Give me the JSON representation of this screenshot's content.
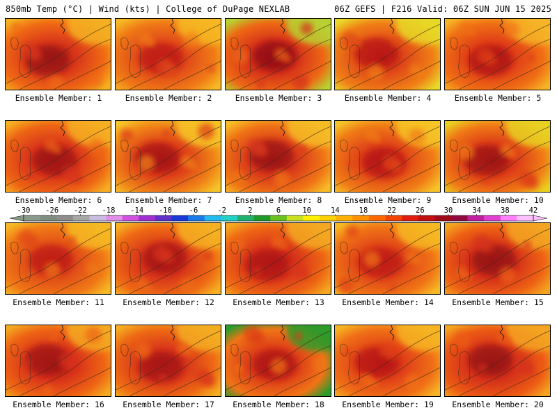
{
  "header": {
    "left_title": "850mb Temp (°C) | Wind (kts) | College of DuPage NEXLAB",
    "right_title": "06Z GEFS | F216 Valid: 06Z SUN JUN 15 2025"
  },
  "colorbar": {
    "tick_labels": [
      "-30",
      "-26",
      "-22",
      "-18",
      "-14",
      "-10",
      "-6",
      "-2",
      "2",
      "6",
      "10",
      "14",
      "18",
      "22",
      "26",
      "30",
      "34",
      "38",
      "42"
    ],
    "colors": [
      "#8a9a8a",
      "#7f8c80",
      "#8d8d8d",
      "#a7a7a7",
      "#c8bce0",
      "#e08ee8",
      "#d050e0",
      "#a030d0",
      "#6030c8",
      "#1a3ad8",
      "#1a7ae8",
      "#22b8f0",
      "#22d0c8",
      "#20b070",
      "#1e9a2a",
      "#6cc020",
      "#c8e020",
      "#fff000",
      "#ffd000",
      "#ffb000",
      "#ff9000",
      "#ff6a00",
      "#f04400",
      "#e01e10",
      "#c01010",
      "#a00a18",
      "#900a40",
      "#c020a0",
      "#e040d0",
      "#ff80ff",
      "#ffc0ff"
    ],
    "min": -30,
    "max": 42
  },
  "panels": [
    {
      "label": "Ensemble Member: 1",
      "base": "#f06a14",
      "hot": "#9a1212",
      "mid": "#d8361a",
      "cool": "#f4b020"
    },
    {
      "label": "Ensemble Member: 2",
      "base": "#f07a16",
      "hot": "#c01a14",
      "mid": "#e0481a",
      "cool": "#f6b824"
    },
    {
      "label": "Ensemble Member: 3",
      "base": "#ee6814",
      "hot": "#961014",
      "mid": "#d4301a",
      "cool": "#b8d030"
    },
    {
      "label": "Ensemble Member: 4",
      "base": "#f08016",
      "hot": "#b81614",
      "mid": "#e04818",
      "cool": "#e8d828"
    },
    {
      "label": "Ensemble Member: 5",
      "base": "#f07014",
      "hot": "#b01414",
      "mid": "#e03e18",
      "cool": "#f6b426"
    },
    {
      "label": "Ensemble Member: 6",
      "base": "#ee6614",
      "hot": "#a01212",
      "mid": "#d8341a",
      "cool": "#f6ae22"
    },
    {
      "label": "Ensemble Member: 7",
      "base": "#f08418",
      "hot": "#a81414",
      "mid": "#dc3c18",
      "cool": "#f6c428"
    },
    {
      "label": "Ensemble Member: 8",
      "base": "#f07416",
      "hot": "#9c1212",
      "mid": "#d8381a",
      "cool": "#f6bc26"
    },
    {
      "label": "Ensemble Member: 9",
      "base": "#f07c16",
      "hot": "#b81614",
      "mid": "#e04418",
      "cool": "#f6c428"
    },
    {
      "label": "Ensemble Member: 10",
      "base": "#f07a16",
      "hot": "#a01212",
      "mid": "#dc3a18",
      "cool": "#e8d020"
    },
    {
      "label": "Ensemble Member: 11",
      "base": "#f07816",
      "hot": "#c01a14",
      "mid": "#e04a18",
      "cool": "#f6b824"
    },
    {
      "label": "Ensemble Member: 12",
      "base": "#ee6a14",
      "hot": "#a81414",
      "mid": "#d8361a",
      "cool": "#f6b022"
    },
    {
      "label": "Ensemble Member: 13",
      "base": "#ee6614",
      "hot": "#b01414",
      "mid": "#d8341a",
      "cool": "#f4a820"
    },
    {
      "label": "Ensemble Member: 14",
      "base": "#f07416",
      "hot": "#c01a14",
      "mid": "#e04418",
      "cool": "#f6b824"
    },
    {
      "label": "Ensemble Member: 15",
      "base": "#ee6214",
      "hot": "#981212",
      "mid": "#d4301a",
      "cool": "#f4a420"
    },
    {
      "label": "Ensemble Member: 16",
      "base": "#ee6414",
      "hot": "#a01212",
      "mid": "#d8321a",
      "cool": "#f4a820"
    },
    {
      "label": "Ensemble Member: 17",
      "base": "#ee6a14",
      "hot": "#a81414",
      "mid": "#d8361a",
      "cool": "#f4ac22"
    },
    {
      "label": "Ensemble Member: 18",
      "base": "#f07416",
      "hot": "#b01414",
      "mid": "#dc3c18",
      "cool": "#2e9a2a"
    },
    {
      "label": "Ensemble Member: 19",
      "base": "#f07016",
      "hot": "#b81614",
      "mid": "#e04018",
      "cool": "#f6b424"
    },
    {
      "label": "Ensemble Member: 20",
      "base": "#ec5a14",
      "hot": "#981212",
      "mid": "#d4301a",
      "cool": "#f4a420"
    }
  ]
}
